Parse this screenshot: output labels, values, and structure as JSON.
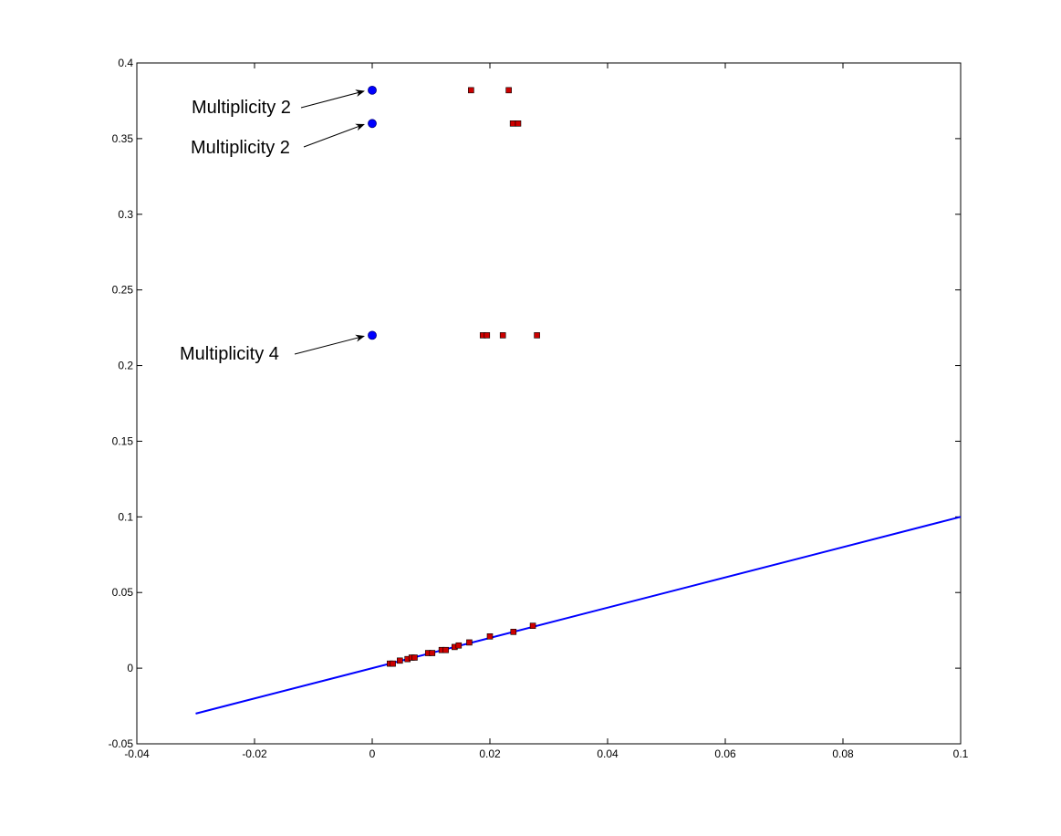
{
  "chart_data": {
    "type": "scatter",
    "xlim": [
      -0.04,
      0.1
    ],
    "ylim": [
      -0.05,
      0.4
    ],
    "xticks": [
      "-0.04",
      "-0.02",
      "0",
      "0.02",
      "0.04",
      "0.06",
      "0.08",
      "0.1"
    ],
    "yticks": [
      "-0.05",
      "0",
      "0.05",
      "0.1",
      "0.15",
      "0.2",
      "0.25",
      "0.3",
      "0.35",
      "0.4"
    ],
    "xtick_values": [
      -0.04,
      -0.02,
      0,
      0.02,
      0.04,
      0.06,
      0.08,
      0.1
    ],
    "ytick_values": [
      -0.05,
      0,
      0.05,
      0.1,
      0.15,
      0.2,
      0.25,
      0.3,
      0.35,
      0.4
    ],
    "grid": false,
    "line": {
      "x": [
        -0.03,
        0.1
      ],
      "y": [
        -0.03,
        0.1
      ],
      "color": "#0000ff"
    },
    "blue_points": {
      "color": "#0000ff",
      "points": [
        [
          0,
          0.382
        ],
        [
          0,
          0.36
        ],
        [
          0,
          0.22
        ]
      ]
    },
    "red_points": {
      "color": "#cc0000",
      "points": [
        [
          0.0168,
          0.382
        ],
        [
          0.0232,
          0.382
        ],
        [
          0.0239,
          0.36
        ],
        [
          0.0248,
          0.36
        ],
        [
          0.0188,
          0.22
        ],
        [
          0.0195,
          0.22
        ],
        [
          0.0222,
          0.22
        ],
        [
          0.028,
          0.22
        ],
        [
          0.003,
          0.003
        ],
        [
          0.0035,
          0.003
        ],
        [
          0.0047,
          0.005
        ],
        [
          0.006,
          0.006
        ],
        [
          0.0067,
          0.007
        ],
        [
          0.0072,
          0.007
        ],
        [
          0.0095,
          0.01
        ],
        [
          0.0102,
          0.01
        ],
        [
          0.0118,
          0.012
        ],
        [
          0.0125,
          0.012
        ],
        [
          0.014,
          0.014
        ],
        [
          0.0147,
          0.015
        ],
        [
          0.0165,
          0.017
        ],
        [
          0.02,
          0.021
        ],
        [
          0.024,
          0.024
        ],
        [
          0.0273,
          0.028
        ]
      ]
    },
    "annotations": [
      {
        "text": "Multiplicity 2",
        "target": [
          0,
          0.382
        ]
      },
      {
        "text": "Multiplicity 2",
        "target": [
          0,
          0.36
        ]
      },
      {
        "text": "Multiplicity 4",
        "target": [
          0,
          0.22
        ]
      }
    ]
  }
}
